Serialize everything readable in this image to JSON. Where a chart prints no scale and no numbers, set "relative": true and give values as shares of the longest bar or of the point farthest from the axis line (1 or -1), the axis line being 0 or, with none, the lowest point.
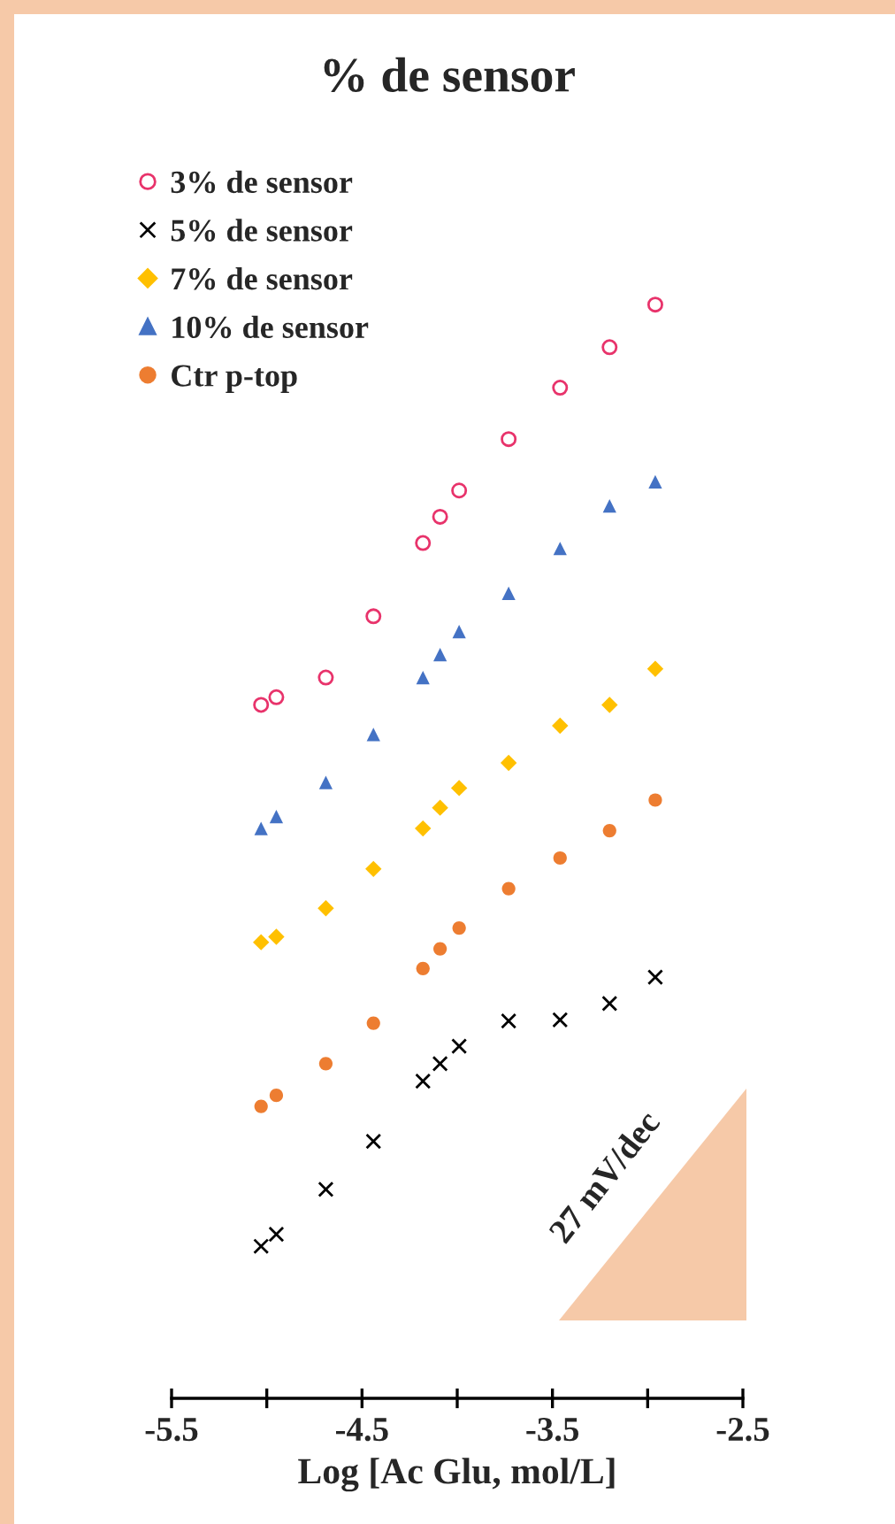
{
  "chart_data": {
    "type": "scatter",
    "title": "% de sensor",
    "xlabel": "Log [Ac Glu, mol/L]",
    "relative": true,
    "x": [
      -5.03,
      -4.95,
      -4.69,
      -4.44,
      -4.18,
      -4.09,
      -3.99,
      -3.73,
      -3.46,
      -3.2,
      -2.96
    ],
    "xlim": [
      -5.5,
      -2.5
    ],
    "xticks": [
      -5.5,
      {
        "value": -5,
        "label": null
      },
      -4.5,
      {
        "value": -4,
        "label": null
      },
      -3.5,
      {
        "value": -3,
        "label": null
      },
      -2.5
    ],
    "tick_labels": "x",
    "legend": "top left",
    "grid": false,
    "annotations": [
      "27 mV/dec"
    ],
    "series": [
      {
        "name": "3% de sensor",
        "color": "#e8336b",
        "marker": "open circle",
        "values": [
          0.634,
          0.641,
          0.659,
          0.715,
          0.782,
          0.806,
          0.83,
          0.877,
          0.924,
          0.961,
          1.0
        ]
      },
      {
        "name": "5% de sensor",
        "color": "#000000",
        "marker": "cross",
        "values": [
          0.139,
          0.15,
          0.191,
          0.235,
          0.29,
          0.306,
          0.322,
          0.345,
          0.346,
          0.361,
          0.385
        ]
      },
      {
        "name": "7% de sensor",
        "color": "#ffc000",
        "marker": "diamond",
        "values": [
          0.417,
          0.422,
          0.448,
          0.484,
          0.521,
          0.54,
          0.558,
          0.581,
          0.615,
          0.634,
          0.667
        ]
      },
      {
        "name": "10% de sensor",
        "color": "#4472c4",
        "marker": "triangle",
        "values": [
          0.521,
          0.532,
          0.563,
          0.607,
          0.659,
          0.68,
          0.701,
          0.736,
          0.777,
          0.816,
          0.838
        ]
      },
      {
        "name": "Ctr p-top",
        "color": "#ed7d31",
        "marker": "circle",
        "values": [
          0.267,
          0.277,
          0.306,
          0.343,
          0.393,
          0.411,
          0.43,
          0.466,
          0.494,
          0.519,
          0.547
        ]
      }
    ]
  }
}
